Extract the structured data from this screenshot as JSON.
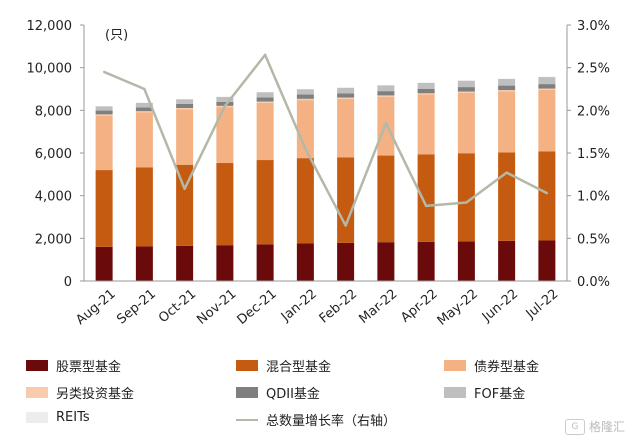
{
  "chart_data": {
    "type": "bar",
    "stacked": true,
    "y_unit_label": "(只)",
    "categories": [
      "Aug-21",
      "Sep-21",
      "Oct-21",
      "Nov-21",
      "Dec-21",
      "Jan-22",
      "Feb-22",
      "Mar-22",
      "Apr-22",
      "May-22",
      "Jun-22",
      "Jul-22"
    ],
    "ylim": [
      0,
      12000
    ],
    "yticks": [
      "0",
      "2,000",
      "4,000",
      "6,000",
      "8,000",
      "10,000",
      "12,000"
    ],
    "y2lim": [
      0,
      3.0
    ],
    "y2ticks": [
      "0.0%",
      "0.5%",
      "1.0%",
      "1.5%",
      "2.0%",
      "2.5%",
      "3.0%"
    ],
    "series": [
      {
        "name": "股票型基金",
        "color": "#6b0a0a",
        "values": [
          1600,
          1620,
          1650,
          1680,
          1720,
          1760,
          1790,
          1820,
          1840,
          1860,
          1880,
          1900
        ]
      },
      {
        "name": "混合型基金",
        "color": "#c55a11",
        "values": [
          3600,
          3700,
          3800,
          3850,
          3950,
          4000,
          4010,
          4060,
          4100,
          4130,
          4150,
          4180
        ]
      },
      {
        "name": "债券型基金",
        "color": "#f4b183",
        "values": [
          2550,
          2580,
          2600,
          2620,
          2680,
          2720,
          2740,
          2760,
          2800,
          2830,
          2860,
          2880
        ]
      },
      {
        "name": "另类投资基金",
        "color": "#f8cbad",
        "values": [
          60,
          60,
          60,
          60,
          60,
          60,
          60,
          60,
          60,
          60,
          60,
          60
        ]
      },
      {
        "name": "QDII基金",
        "color": "#7f7f7f",
        "values": [
          180,
          180,
          190,
          190,
          200,
          200,
          200,
          200,
          200,
          210,
          210,
          210
        ]
      },
      {
        "name": "FOF基金",
        "color": "#bfbfbf",
        "values": [
          200,
          210,
          220,
          230,
          240,
          250,
          260,
          270,
          290,
          300,
          310,
          330
        ]
      },
      {
        "name": "REITs",
        "color": "#ededed",
        "values": [
          10,
          10,
          10,
          11,
          11,
          12,
          12,
          12,
          14,
          16,
          18,
          20
        ]
      }
    ],
    "line_series": {
      "name": "总数量增长率（右轴）",
      "color": "#b4b8a8",
      "values": [
        2.45,
        2.25,
        1.08,
        2.05,
        2.65,
        1.55,
        0.65,
        1.85,
        0.88,
        0.92,
        1.27,
        1.03
      ]
    },
    "legend_position": "bottom"
  },
  "legend": [
    {
      "label": "股票型基金",
      "color": "#6b0a0a",
      "kind": "bar"
    },
    {
      "label": "混合型基金",
      "color": "#c55a11",
      "kind": "bar"
    },
    {
      "label": "债券型基金",
      "color": "#f4b183",
      "kind": "bar"
    },
    {
      "label": "另类投资基金",
      "color": "#f8cbad",
      "kind": "bar"
    },
    {
      "label": "QDII基金",
      "color": "#7f7f7f",
      "kind": "bar"
    },
    {
      "label": "FOF基金",
      "color": "#bfbfbf",
      "kind": "bar"
    },
    {
      "label": "REITs",
      "color": "#ededed",
      "kind": "bar"
    },
    {
      "label": "总数量增长率（右轴）",
      "color": "#b4b8a8",
      "kind": "line"
    }
  ],
  "watermark": {
    "logo": "G",
    "text": "格隆汇"
  }
}
